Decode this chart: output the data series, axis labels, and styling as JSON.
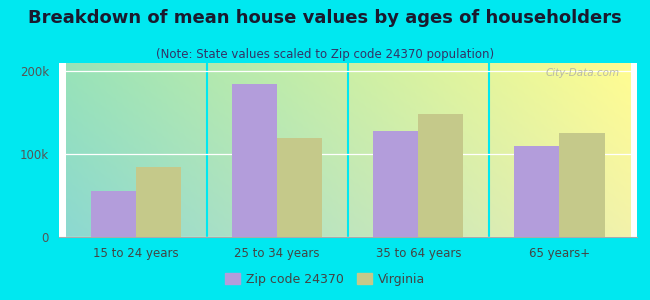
{
  "title": "Breakdown of mean house values by ages of householders",
  "subtitle": "(Note: State values scaled to Zip code 24370 population)",
  "categories": [
    "15 to 24 years",
    "25 to 34 years",
    "35 to 64 years",
    "65 years+"
  ],
  "zip_values": [
    55000,
    185000,
    128000,
    110000
  ],
  "state_values": [
    85000,
    120000,
    148000,
    125000
  ],
  "zip_color": "#b39ddb",
  "state_color": "#c5c98a",
  "background_outer": "#00e8f0",
  "ylim": [
    0,
    210000
  ],
  "ytick_labels": [
    "0",
    "100k",
    "200k"
  ],
  "bar_width": 0.32,
  "legend_zip_label": "Zip code 24370",
  "legend_state_label": "Virginia",
  "title_fontsize": 13,
  "subtitle_fontsize": 8.5,
  "axis_fontsize": 8.5,
  "legend_fontsize": 9
}
